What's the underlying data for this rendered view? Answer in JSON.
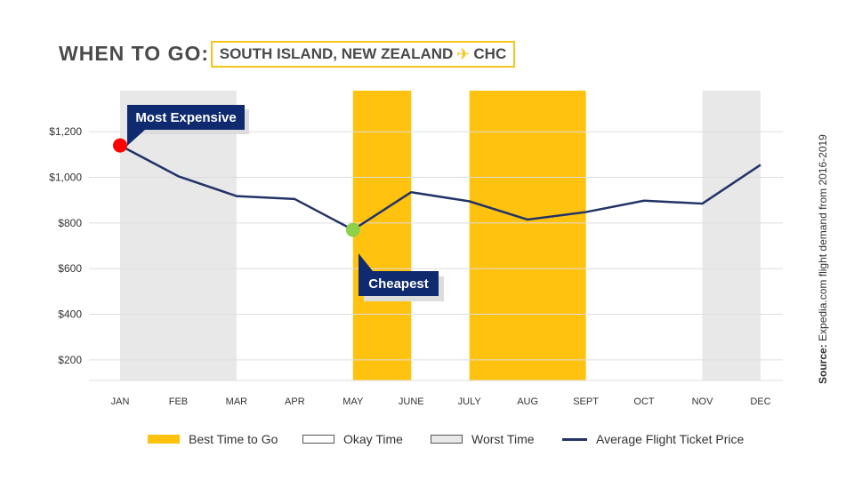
{
  "title": "WHEN TO GO:",
  "subtitle_left": "SOUTH ISLAND, NEW ZEALAND",
  "subtitle_right": "CHC",
  "source_label": "Source:",
  "source_text": "Expedia.com flight demand from 2016-2019",
  "colors": {
    "best": "#fec20f",
    "worst": "#e8e8e8",
    "line": "#223366",
    "callout": "#0f2a6e",
    "max_dot": "#ff0000",
    "min_dot": "#8bd14a"
  },
  "chart_data": {
    "type": "line",
    "categories": [
      "JAN",
      "FEB",
      "MAR",
      "APR",
      "MAY",
      "JUNE",
      "JULY",
      "AUG",
      "SEPT",
      "OCT",
      "NOV",
      "DEC"
    ],
    "series": [
      {
        "name": "Average Flight Ticket Price",
        "values": [
          1140,
          1005,
          918,
          905,
          770,
          935,
          895,
          815,
          848,
          898,
          885,
          1055
        ]
      }
    ],
    "ylim": [
      110,
      1380
    ],
    "yticks": [
      200,
      400,
      600,
      800,
      1000,
      1200
    ],
    "ytick_labels": [
      "$200",
      "$400",
      "$600",
      "$800",
      "$1,000",
      "$1,200"
    ],
    "grid": true,
    "bands": [
      {
        "type": "worst",
        "start": 0,
        "end": 2
      },
      {
        "type": "best",
        "start": 4,
        "end": 5
      },
      {
        "type": "best",
        "start": 6,
        "end": 8
      },
      {
        "type": "worst",
        "start": 10,
        "end": 11
      }
    ],
    "annotations": [
      {
        "label": "Most Expensive",
        "index": 0
      },
      {
        "label": "Cheapest",
        "index": 4
      }
    ],
    "legend": [
      {
        "key": "best",
        "label": "Best Time to Go"
      },
      {
        "key": "okay",
        "label": "Okay Time"
      },
      {
        "key": "worst",
        "label": "Worst Time"
      },
      {
        "key": "line",
        "label": "Average Flight Ticket Price"
      }
    ]
  }
}
